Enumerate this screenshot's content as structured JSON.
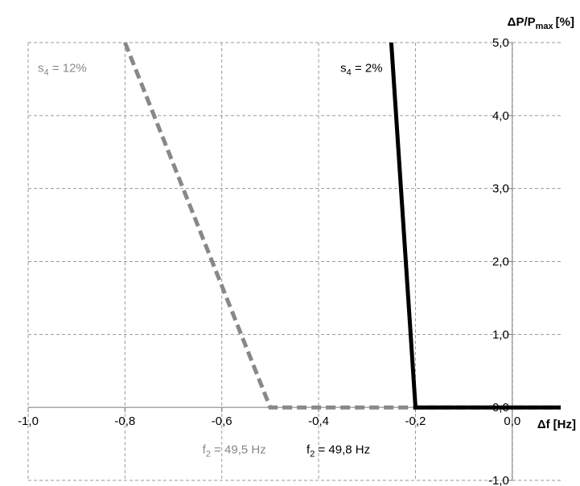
{
  "chart_data": {
    "type": "line",
    "xlabel": {
      "main": "Δf",
      "unit": "[Hz]"
    },
    "ylabel": {
      "main": "ΔP/P",
      "sub": "max",
      "unit": "[%]"
    },
    "xlim": [
      -1.0,
      0.1
    ],
    "ylim": [
      -1.0,
      5.0
    ],
    "x_ticks": [
      {
        "value": -1.0,
        "label": "-1,0"
      },
      {
        "value": -0.8,
        "label": "-0,8"
      },
      {
        "value": -0.6,
        "label": "-0,6"
      },
      {
        "value": -0.4,
        "label": "-0,4"
      },
      {
        "value": -0.2,
        "label": "-0,2"
      },
      {
        "value": 0.0,
        "label": "0,0"
      }
    ],
    "y_ticks": [
      {
        "value": 5.0,
        "label": "5,0"
      },
      {
        "value": 4.0,
        "label": "4,0"
      },
      {
        "value": 3.0,
        "label": "3,0"
      },
      {
        "value": 2.0,
        "label": "2,0"
      },
      {
        "value": 1.0,
        "label": "1,0"
      },
      {
        "value": 0.0,
        "label": "0,0"
      },
      {
        "value": -1.0,
        "label": "-1,0"
      }
    ],
    "grid": true,
    "series": [
      {
        "color": "#888888",
        "dash": true,
        "points": [
          [
            -0.8,
            5.0
          ],
          [
            -0.5,
            0.0
          ],
          [
            0.1,
            0.0
          ]
        ]
      },
      {
        "color": "#000000",
        "dash": false,
        "points": [
          [
            -0.25,
            5.0
          ],
          [
            -0.2,
            0.0
          ],
          [
            0.1,
            0.0
          ]
        ]
      }
    ],
    "annotations": [
      {
        "id": "s4-12",
        "text": "s",
        "sub": "4",
        "rest": " = 12%",
        "color": "#888888",
        "x": -0.98,
        "y": 4.6
      },
      {
        "id": "s4-2",
        "text": "s",
        "sub": "4",
        "rest": " = 2%",
        "color": "#000000",
        "x": -0.355,
        "y": 4.6
      },
      {
        "id": "f2-495",
        "text": "f",
        "sub": "2",
        "rest": " = 49,5 Hz",
        "color": "#888888",
        "x": -0.64,
        "y": -0.63
      },
      {
        "id": "f2-498",
        "text": "f",
        "sub": "2",
        "rest": " = 49,8 Hz",
        "color": "#000000",
        "x": -0.425,
        "y": -0.63
      }
    ]
  }
}
